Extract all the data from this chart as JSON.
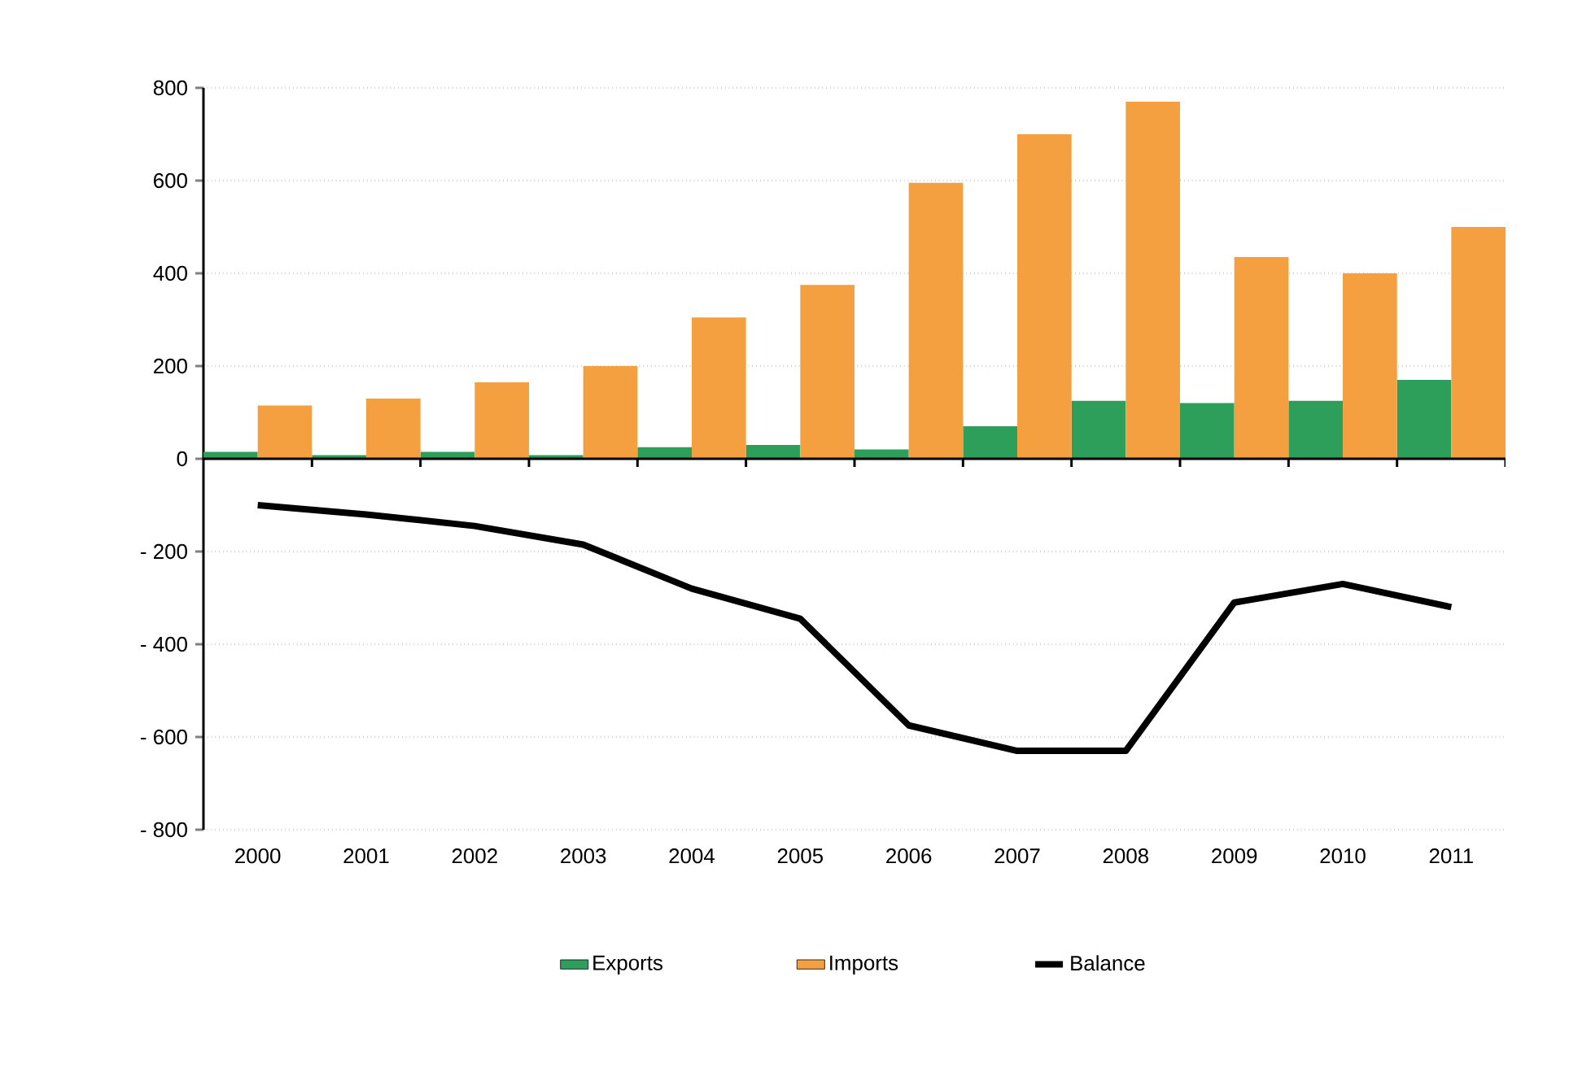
{
  "chart_data": {
    "type": "bar",
    "categories": [
      "2000",
      "2001",
      "2002",
      "2003",
      "2004",
      "2005",
      "2006",
      "2007",
      "2008",
      "2009",
      "2010",
      "2011"
    ],
    "series": [
      {
        "name": "Exports",
        "color": "#2e9e5b",
        "values": [
          15,
          8,
          15,
          8,
          25,
          30,
          20,
          70,
          125,
          120,
          125,
          170
        ]
      },
      {
        "name": "Imports",
        "color": "#f5a040",
        "values": [
          115,
          130,
          165,
          200,
          305,
          375,
          595,
          700,
          770,
          435,
          400,
          500
        ]
      },
      {
        "name": "Balance",
        "type": "line",
        "color": "#000000",
        "marker": "none",
        "line_style": "solid",
        "values": [
          -100,
          -120,
          -145,
          -185,
          -280,
          -345,
          -575,
          -630,
          -630,
          -310,
          -270,
          -320
        ]
      }
    ],
    "ylim": [
      -800,
      800
    ],
    "yticks": [
      {
        "value": -800,
        "label": "- 800"
      },
      {
        "value": -600,
        "label": "- 600"
      },
      {
        "value": -400,
        "label": "- 400"
      },
      {
        "value": -200,
        "label": "- 200"
      },
      0,
      200,
      400,
      600,
      800
    ],
    "grid": "y",
    "legend": "bottom"
  }
}
